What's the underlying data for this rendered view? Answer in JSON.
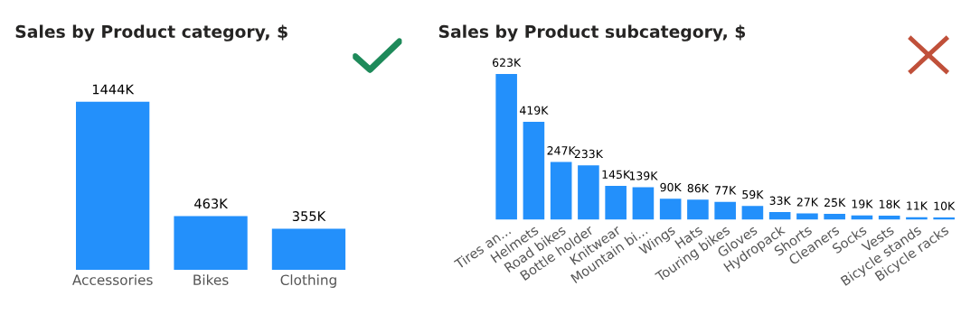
{
  "chart_data": [
    {
      "type": "bar",
      "title": "Sales by Product category, $",
      "categories": [
        "Accessories",
        "Bikes",
        "Clothing"
      ],
      "values": [
        1444,
        463,
        355
      ],
      "value_labels": [
        "1444K",
        "463K",
        "355K"
      ],
      "color": "#2390fb"
    },
    {
      "type": "bar",
      "title": "Sales by Product subcategory, $",
      "categories": [
        "Tires an...",
        "Helmets",
        "Road bikes",
        "Bottle holder",
        "Knitwear",
        "Mountain bi...",
        "Wings",
        "Hats",
        "Touring bikes",
        "Gloves",
        "Hydropack",
        "Shorts",
        "Cleaners",
        "Socks",
        "Vests",
        "Bicycle stands",
        "Bicycle racks"
      ],
      "values": [
        623,
        419,
        247,
        233,
        145,
        139,
        90,
        86,
        77,
        59,
        33,
        27,
        25,
        19,
        18,
        11,
        10
      ],
      "value_labels": [
        "623K",
        "419K",
        "247K",
        "233K",
        "145K",
        "139K",
        "90K",
        "86K",
        "77K",
        "59K",
        "33K",
        "27K",
        "25K",
        "19K",
        "18K",
        "11K",
        "10K"
      ],
      "color": "#2390fb"
    }
  ]
}
